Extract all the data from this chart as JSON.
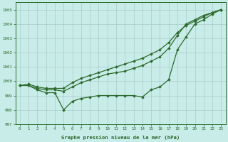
{
  "x": [
    0,
    1,
    2,
    3,
    4,
    5,
    6,
    7,
    8,
    9,
    10,
    11,
    12,
    13,
    14,
    15,
    16,
    17,
    18,
    19,
    20,
    21,
    22,
    23
  ],
  "line1": [
    999.7,
    999.7,
    999.4,
    999.2,
    999.2,
    998.0,
    998.6,
    998.8,
    998.9,
    999.0,
    999.0,
    999.0,
    999.0,
    999.0,
    998.9,
    999.4,
    999.6,
    1000.1,
    1002.2,
    1003.1,
    1004.0,
    1004.3,
    1004.7,
    1005.0
  ],
  "line2": [
    999.7,
    999.7,
    999.5,
    999.4,
    999.4,
    999.3,
    999.6,
    999.9,
    1000.1,
    1000.3,
    1000.5,
    1000.6,
    1000.7,
    1000.9,
    1001.1,
    1001.4,
    1001.7,
    1002.3,
    1003.2,
    1004.0,
    1004.3,
    1004.6,
    1004.8,
    1005.0
  ],
  "line3": [
    999.7,
    999.8,
    999.6,
    999.5,
    999.5,
    999.5,
    999.9,
    1000.2,
    1000.4,
    1000.6,
    1000.8,
    1001.0,
    1001.2,
    1001.4,
    1001.6,
    1001.9,
    1002.2,
    1002.7,
    1003.4,
    1003.9,
    1004.2,
    1004.5,
    1004.8,
    1005.0
  ],
  "line_color": "#2d6a2d",
  "background_color": "#c8ece8",
  "grid_color": "#aacaca",
  "ylabel_ticks": [
    997,
    998,
    999,
    1000,
    1001,
    1002,
    1003,
    1004,
    1005
  ],
  "xlabel_ticks": [
    0,
    1,
    2,
    3,
    4,
    5,
    6,
    7,
    8,
    9,
    10,
    11,
    12,
    13,
    14,
    15,
    16,
    17,
    18,
    19,
    20,
    21,
    22,
    23
  ],
  "xlabel": "Graphe pression niveau de la mer (hPa)",
  "ylim": [
    997.0,
    1005.5
  ],
  "xlim": [
    -0.5,
    23.5
  ],
  "marker": "D",
  "marker_size": 1.8,
  "line_width": 0.9,
  "tick_fontsize": 4.2,
  "xlabel_fontsize": 5.2
}
